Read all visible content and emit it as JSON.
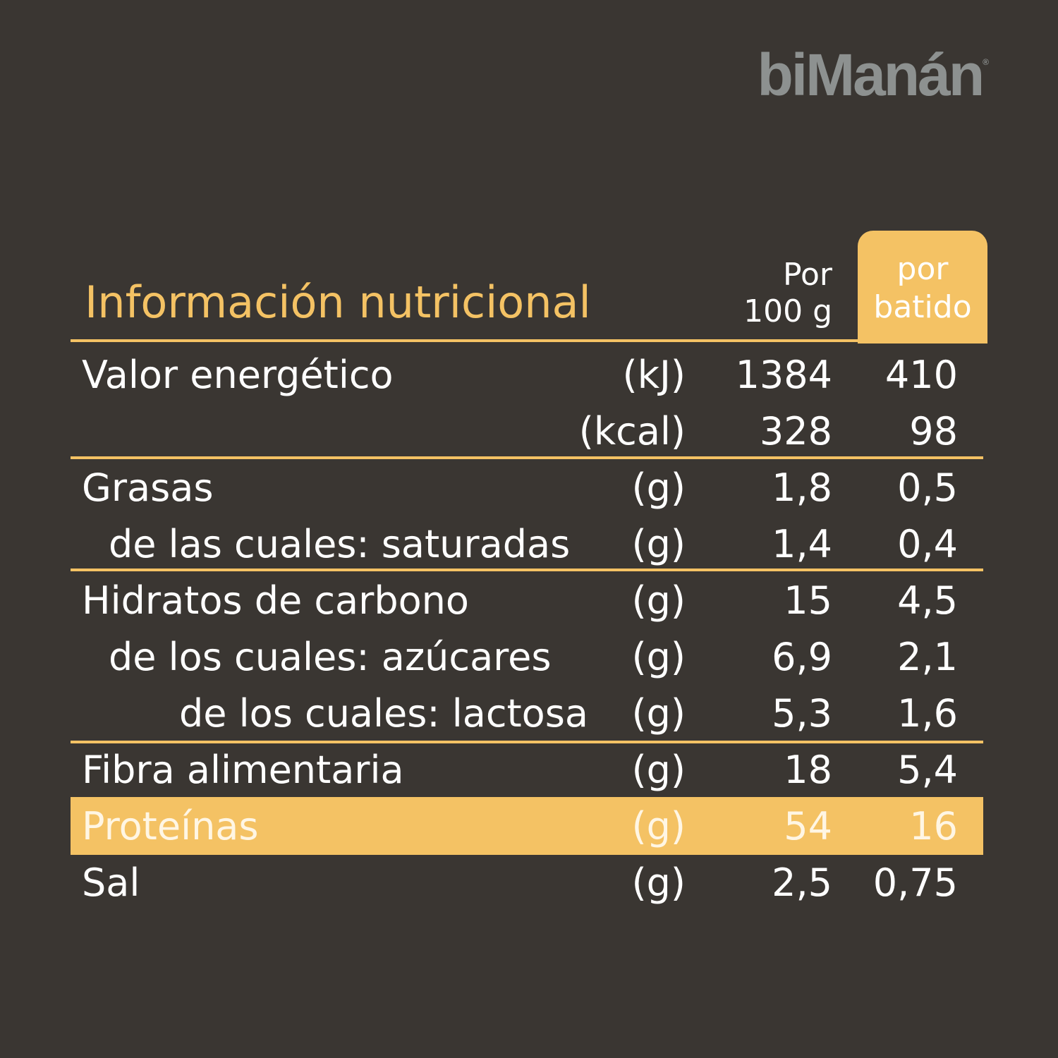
{
  "brand": {
    "name": "biManán",
    "registered": "®"
  },
  "title": "Información nutricional",
  "headers": {
    "per100_line1": "Por",
    "per100_line2": "100 g",
    "perShake_line1": "por",
    "perShake_line2": "batido"
  },
  "rows": [
    {
      "label": "Valor energético",
      "unit": "(kJ)",
      "per100": "1384",
      "perShake": "410"
    },
    {
      "label": "",
      "unit": "(kcal)",
      "per100": "328",
      "perShake": "98"
    },
    {
      "label": "Grasas",
      "unit": "(g)",
      "per100": "1,8",
      "perShake": "0,5"
    },
    {
      "label": "de las cuales: saturadas",
      "unit": "(g)",
      "per100": "1,4",
      "perShake": "0,4"
    },
    {
      "label": "Hidratos de carbono",
      "unit": "(g)",
      "per100": "15",
      "perShake": "4,5"
    },
    {
      "label": "de los cuales: azúcares",
      "unit": "(g)",
      "per100": "6,9",
      "perShake": "2,1"
    },
    {
      "label": "de los cuales: lactosa",
      "unit": "(g)",
      "per100": "5,3",
      "perShake": "1,6"
    },
    {
      "label": "Fibra alimentaria",
      "unit": "(g)",
      "per100": "18",
      "perShake": "5,4"
    },
    {
      "label": "Proteínas",
      "unit": "(g)",
      "per100": "54",
      "perShake": "16"
    },
    {
      "label": "Sal",
      "unit": "(g)",
      "per100": "2,5",
      "perShake": "0,75"
    }
  ],
  "colors": {
    "background": "#3a3632",
    "accent": "#f4c264",
    "logo": "#8d9190",
    "text": "#ffffff"
  }
}
